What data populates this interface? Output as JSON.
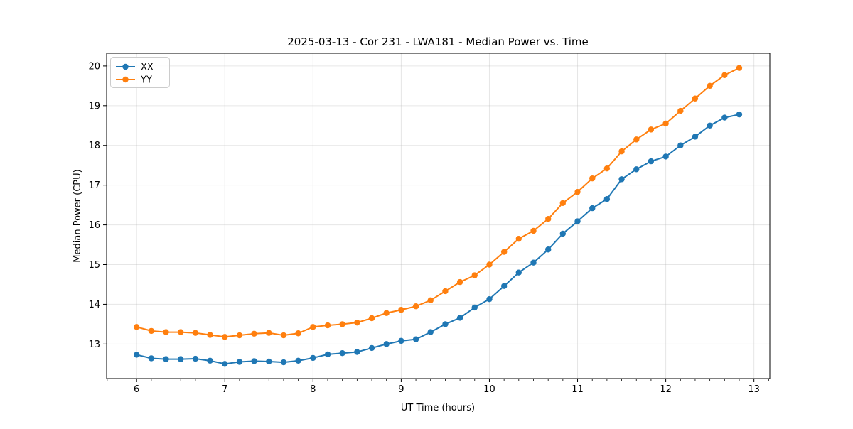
{
  "figure": {
    "background": "#ffffff"
  },
  "chart_data": {
    "type": "line",
    "title": "2025-03-13 - Cor 231 - LWA181 - Median Power vs. Time",
    "xlabel": "UT Time (hours)",
    "ylabel": "Median Power (CPU)",
    "xlim": [
      5.66,
      13.18
    ],
    "ylim": [
      12.13,
      20.32
    ],
    "xticks": [
      6,
      7,
      8,
      9,
      10,
      11,
      12,
      13
    ],
    "yticks": [
      13,
      14,
      15,
      16,
      17,
      18,
      19,
      20
    ],
    "x_minor_step": 0.16667,
    "grid": true,
    "grid_color": "#b0b0b0",
    "legend": {
      "position": "upper left"
    },
    "x": [
      6.0,
      6.167,
      6.333,
      6.5,
      6.667,
      6.833,
      7.0,
      7.167,
      7.333,
      7.5,
      7.667,
      7.833,
      8.0,
      8.167,
      8.333,
      8.5,
      8.667,
      8.833,
      9.0,
      9.167,
      9.333,
      9.5,
      9.667,
      9.833,
      10.0,
      10.167,
      10.333,
      10.5,
      10.667,
      10.833,
      11.0,
      11.167,
      11.333,
      11.5,
      11.667,
      11.833,
      12.0,
      12.167,
      12.333,
      12.5,
      12.667,
      12.833
    ],
    "series": [
      {
        "name": "XX",
        "color": "#1f77b4",
        "marker": "circle",
        "values": [
          12.73,
          12.64,
          12.62,
          12.62,
          12.63,
          12.58,
          12.5,
          12.55,
          12.57,
          12.56,
          12.54,
          12.58,
          12.65,
          12.74,
          12.77,
          12.8,
          12.9,
          13.0,
          13.08,
          13.12,
          13.3,
          13.5,
          13.66,
          13.92,
          14.13,
          14.46,
          14.8,
          15.05,
          15.38,
          15.78,
          16.09,
          16.42,
          16.65,
          17.15,
          17.4,
          17.6,
          17.72,
          18.0,
          18.22,
          18.5,
          18.7,
          18.78
        ]
      },
      {
        "name": "YY",
        "color": "#ff7f0e",
        "marker": "circle",
        "values": [
          13.43,
          13.33,
          13.3,
          13.3,
          13.28,
          13.23,
          13.18,
          13.22,
          13.26,
          13.28,
          13.22,
          13.27,
          13.43,
          13.47,
          13.5,
          13.54,
          13.65,
          13.78,
          13.86,
          13.95,
          14.1,
          14.33,
          14.56,
          14.73,
          15.0,
          15.32,
          15.65,
          15.85,
          16.15,
          16.55,
          16.83,
          17.17,
          17.42,
          17.85,
          18.15,
          18.4,
          18.55,
          18.87,
          19.18,
          19.5,
          19.77,
          19.95
        ]
      }
    ]
  }
}
